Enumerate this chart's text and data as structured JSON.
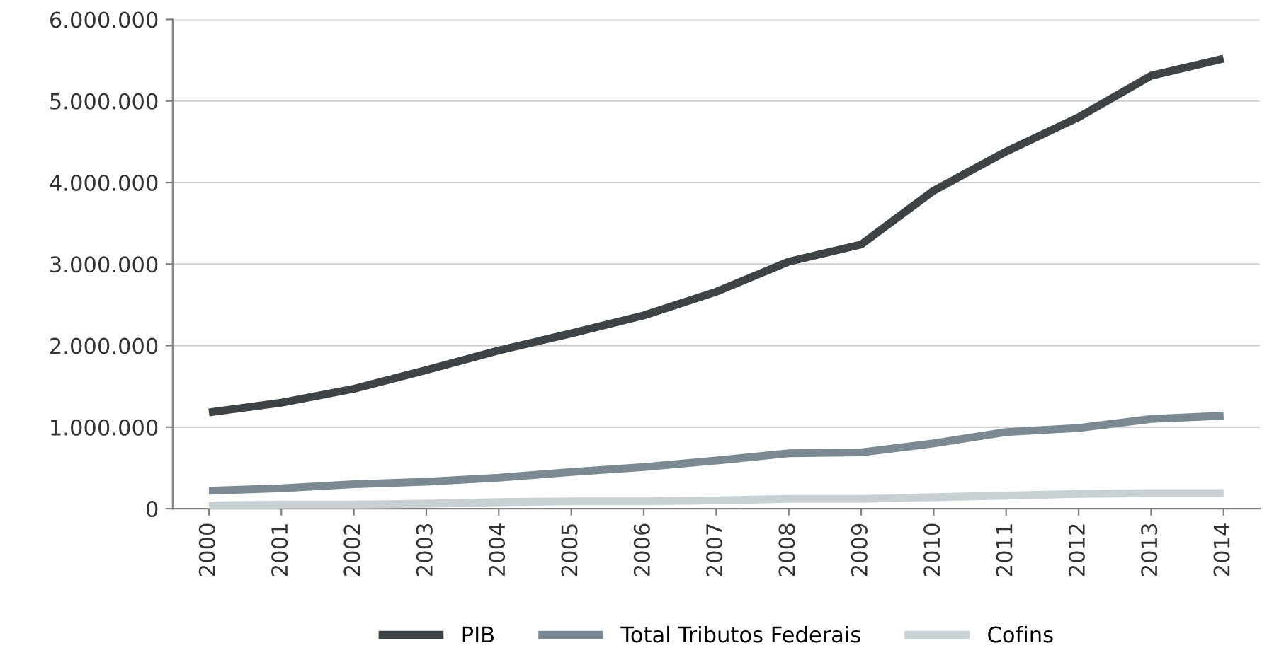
{
  "chart_data": {
    "type": "line",
    "categories": [
      "2000",
      "2001",
      "2002",
      "2003",
      "2004",
      "2005",
      "2006",
      "2007",
      "2008",
      "2009",
      "2010",
      "2011",
      "2012",
      "2013",
      "2014"
    ],
    "series": [
      {
        "name": "PIB",
        "color": "#3d4347",
        "values": [
          1180000,
          1300000,
          1470000,
          1700000,
          1940000,
          2150000,
          2370000,
          2660000,
          3030000,
          3240000,
          3900000,
          4380000,
          4800000,
          5310000,
          5520000
        ]
      },
      {
        "name": "Total Tributos Federais",
        "color": "#7b8a92",
        "values": [
          220000,
          250000,
          300000,
          330000,
          380000,
          450000,
          510000,
          590000,
          680000,
          690000,
          800000,
          940000,
          990000,
          1100000,
          1140000
        ]
      },
      {
        "name": "Cofins",
        "color": "#c8d0d4",
        "values": [
          40000,
          50000,
          50000,
          60000,
          80000,
          90000,
          90000,
          100000,
          120000,
          120000,
          140000,
          160000,
          180000,
          190000,
          190000
        ]
      }
    ],
    "ylim": [
      0,
      6000000
    ],
    "yticks": [
      0,
      {
        "value": 1000000,
        "label": "1.000.000"
      },
      {
        "value": 2000000,
        "label": "2.000.000"
      },
      {
        "value": 3000000,
        "label": "3.000.000"
      },
      {
        "value": 4000000,
        "label": "4.000.000"
      },
      {
        "value": 5000000,
        "label": "5.000.000"
      },
      {
        "value": 6000000,
        "label": "6.000.000"
      }
    ],
    "grid": "y",
    "legend": "bottom",
    "line_style": "solid",
    "marker": "none"
  }
}
